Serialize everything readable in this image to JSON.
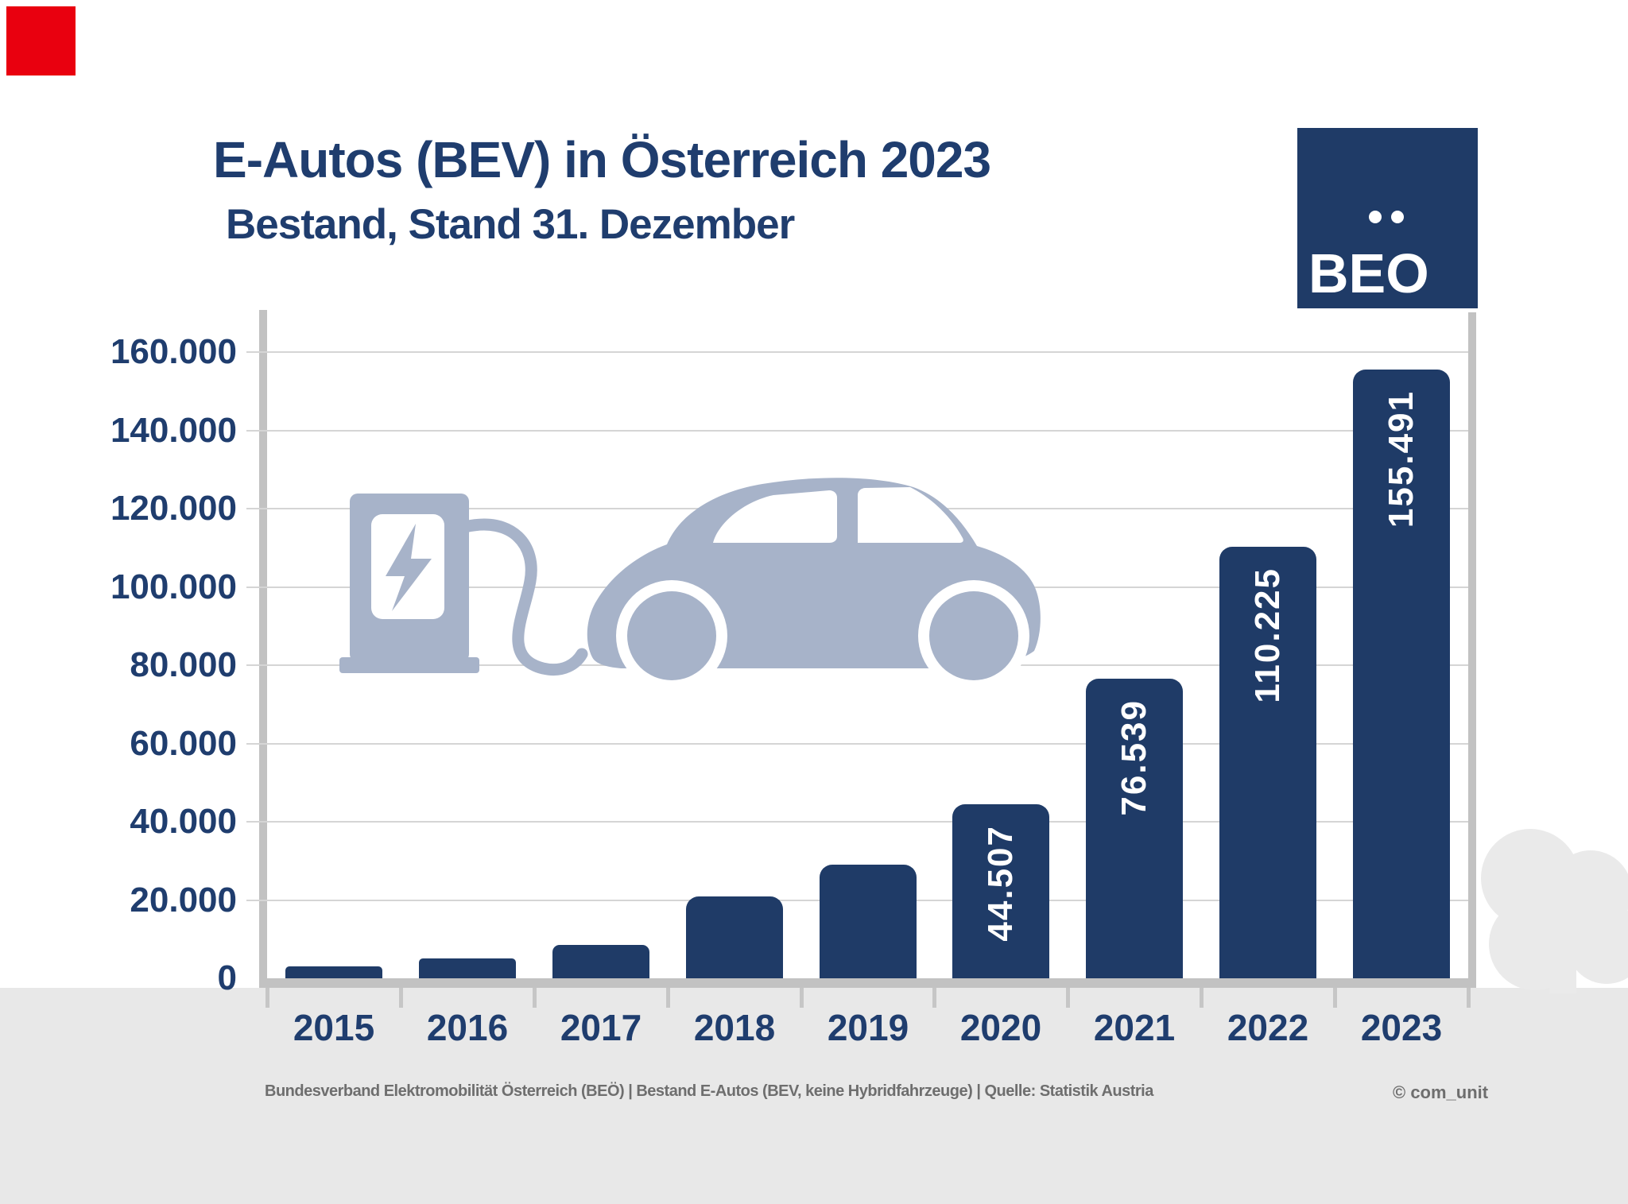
{
  "page": {
    "background": "#FFFFFF",
    "ground_color": "#E8E8E8",
    "accent_red": "#E9000F"
  },
  "header": {
    "title": "E-Autos (BEV) in Österreich 2023",
    "subtitle": "Bestand, Stand 31. Dezember",
    "text_color": "#1F3D6E"
  },
  "logo": {
    "text": "BEO",
    "bg_color": "#1F3B67",
    "text_color": "#FFFFFF"
  },
  "chart_data": {
    "type": "bar",
    "title": "E-Autos (BEV) in Österreich 2023 – Bestand, Stand 31. Dezember",
    "categories": [
      "2015",
      "2016",
      "2017",
      "2018",
      "2019",
      "2020",
      "2021",
      "2022",
      "2023"
    ],
    "values": [
      3000,
      5000,
      8500,
      21000,
      29000,
      44507,
      76539,
      110225,
      155491
    ],
    "value_labels": [
      "",
      "",
      "",
      "",
      "",
      "44.507",
      "76.539",
      "110.225",
      "155.491"
    ],
    "y_tick_labels": [
      "160.000",
      "140.000",
      "120.000",
      "100.000",
      "80.000",
      "60.000",
      "40.000",
      "20.000",
      "0"
    ],
    "y_tick_values": [
      160000,
      140000,
      120000,
      100000,
      80000,
      60000,
      40000,
      20000,
      0
    ],
    "ylim": [
      0,
      170000
    ],
    "grid": true,
    "legend": false,
    "xlabel": "",
    "ylabel": "",
    "bar_color": "#1F3B67",
    "bar_label_color": "#FFFFFF",
    "axis_color": "#C2C2C2",
    "gridline_color": "#D5D5D5",
    "tick_label_color": "#1F3D6E"
  },
  "illustration": {
    "charging_station_icon": "ev-charging-station-with-cable",
    "car_icon": "electric-car-side-silhouette",
    "tree_icon": "tree-silhouette",
    "icon_color": "#A7B3C9",
    "tree_color": "#EAEAEA"
  },
  "footer": {
    "source_line": "Bundesverband Elektromobilität Österreich (BEÖ) | Bestand E-Autos (BEV, keine Hybridfahrzeuge) | Quelle: Statistik Austria",
    "copyright": "© com_unit",
    "text_color": "#6E6E6E"
  }
}
